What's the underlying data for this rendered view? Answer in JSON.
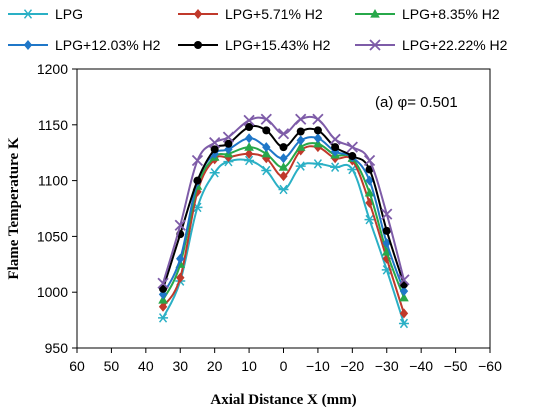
{
  "chart_data": {
    "type": "line",
    "xlabel": "Axial Distance X (mm)",
    "ylabel": "Flame Temperature K",
    "annotation": "(a) φ= 0.501",
    "xlim": [
      60,
      -60
    ],
    "xticks": [
      60,
      50,
      40,
      30,
      20,
      10,
      0,
      -10,
      -20,
      -30,
      -40,
      -50,
      -60
    ],
    "xtick_labels": [
      "60",
      "50",
      "40",
      "30",
      "20",
      "10",
      "0",
      "−10",
      "−20",
      "−30",
      "−40",
      "−50",
      "−60"
    ],
    "ylim": [
      950,
      1200
    ],
    "yticks": [
      950,
      1000,
      1050,
      1100,
      1150,
      1200
    ],
    "ytick_labels": [
      "950",
      "1000",
      "1050",
      "1100",
      "1150",
      "1200"
    ],
    "grid": false,
    "legend_position": "top",
    "x": [
      35,
      30,
      25,
      20,
      16,
      10,
      5,
      0,
      -5,
      -10,
      -15,
      -20,
      -25,
      -30,
      -35
    ],
    "series": [
      {
        "name": "LPG",
        "color": "#2ab0c5",
        "marker": "asterisk",
        "values": [
          977,
          1010,
          1076,
          1107,
          1117,
          1118,
          1109,
          1092,
          1113,
          1115,
          1112,
          1110,
          1065,
          1020,
          972
        ]
      },
      {
        "name": "LPG+5.71% H2",
        "color": "#c0392b",
        "marker": "diamond",
        "values": [
          987,
          1013,
          1090,
          1119,
          1121,
          1124,
          1120,
          1104,
          1127,
          1130,
          1120,
          1118,
          1080,
          1030,
          981
        ]
      },
      {
        "name": "LPG+8.35% H2",
        "color": "#27a84a",
        "marker": "triangle",
        "values": [
          993,
          1025,
          1095,
          1121,
          1124,
          1130,
          1124,
          1112,
          1130,
          1133,
          1123,
          1120,
          1089,
          1036,
          995
        ]
      },
      {
        "name": "LPG+12.03% H2",
        "color": "#1f77c8",
        "marker": "diamond",
        "values": [
          998,
          1030,
          1099,
          1124,
          1128,
          1138,
          1130,
          1120,
          1136,
          1138,
          1126,
          1121,
          1100,
          1044,
          1001
        ]
      },
      {
        "name": "LPG+15.43% H2",
        "color": "#000000",
        "marker": "circle",
        "values": [
          1003,
          1052,
          1100,
          1128,
          1133,
          1148,
          1145,
          1130,
          1144,
          1145,
          1130,
          1122,
          1110,
          1055,
          1007
        ]
      },
      {
        "name": "LPG+22.22% H2",
        "color": "#7e5ca8",
        "marker": "x",
        "values": [
          1008,
          1060,
          1118,
          1134,
          1139,
          1154,
          1155,
          1142,
          1155,
          1155,
          1137,
          1130,
          1118,
          1070,
          1011
        ]
      }
    ]
  }
}
